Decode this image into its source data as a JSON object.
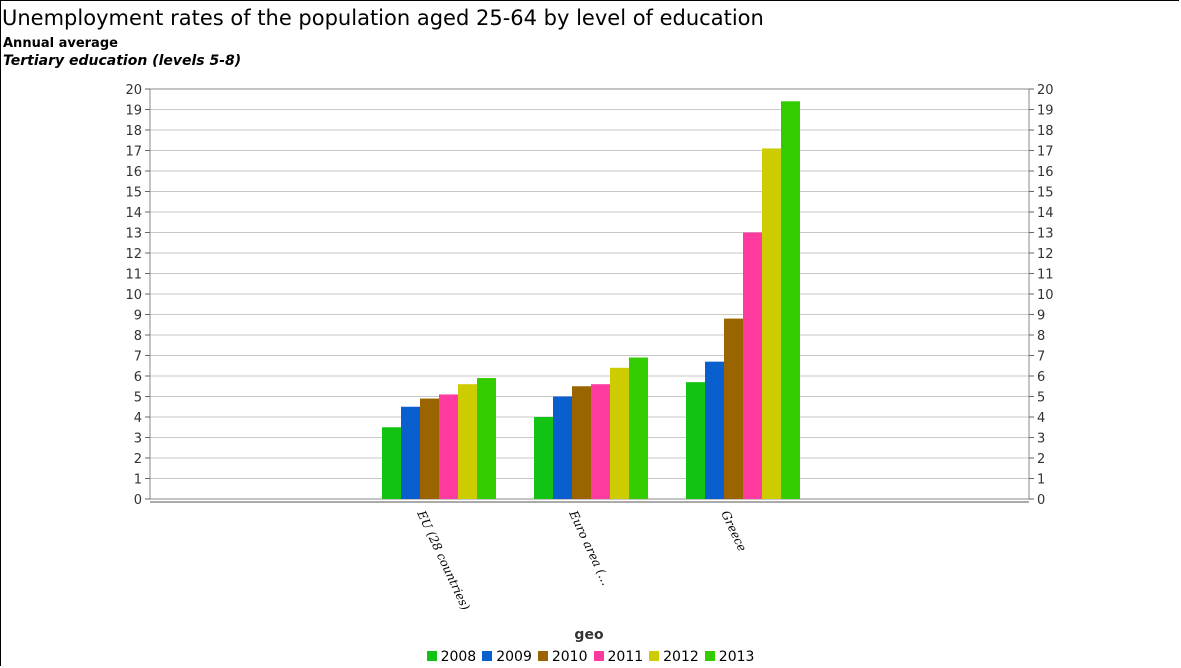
{
  "header": {
    "title": "Unemployment rates of the population aged 25-64 by level of education",
    "subtitle": "Annual average",
    "subtitle2": "Tertiary education (levels 5-8)"
  },
  "chart_data": {
    "type": "bar",
    "title": "Unemployment rates of the population aged 25-64 by level of education",
    "subtitle": "Annual average",
    "xlabel": "geo",
    "ylabel": "",
    "ylim": [
      0,
      20
    ],
    "yticks": [
      "0",
      "1",
      "2",
      "3",
      "4",
      "5",
      "6",
      "7",
      "8",
      "9",
      "10",
      "11",
      "12",
      "13",
      "14",
      "15",
      "16",
      "17",
      "18",
      "19",
      "20"
    ],
    "grid": true,
    "legend_position": "bottom",
    "categories": [
      "EU (28 countries)",
      "Euro area (…",
      "Greece"
    ],
    "series": [
      {
        "name": "2008",
        "color": "#13c313",
        "values": [
          3.5,
          4.0,
          5.7
        ]
      },
      {
        "name": "2009",
        "color": "#0a5fcf",
        "values": [
          4.5,
          5.0,
          6.7
        ]
      },
      {
        "name": "2010",
        "color": "#9a6400",
        "values": [
          4.9,
          5.5,
          8.8
        ]
      },
      {
        "name": "2011",
        "color": "#ff3ba0",
        "values": [
          5.1,
          5.6,
          13.0
        ]
      },
      {
        "name": "2012",
        "color": "#cccc00",
        "values": [
          5.6,
          6.4,
          17.1
        ]
      },
      {
        "name": "2013",
        "color": "#33cc00",
        "values": [
          5.9,
          6.9,
          19.4
        ]
      }
    ]
  }
}
